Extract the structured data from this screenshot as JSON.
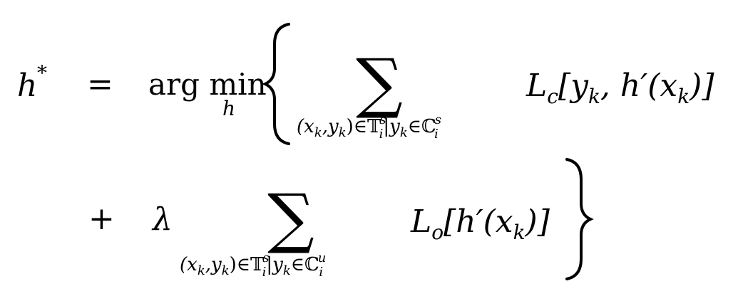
{
  "equation": {
    "lhs": "h",
    "lhs_sup": "*",
    "eq": "=",
    "op": "arg min",
    "op_sub": "h",
    "sum1": {
      "sigma": "∑",
      "sub_a": "(x",
      "sub_a_k": "k",
      "sub_b": ",y",
      "sub_b_k": "k",
      "sub_c": ")∈",
      "T": "𝕋",
      "T_sup": "s",
      "T_sub": "i",
      "bar": "|",
      "y": "y",
      "y_k": "k",
      "in": "∈",
      "C": "ℂ",
      "C_sup": "s",
      "C_sub": "i"
    },
    "term1": {
      "L": "L",
      "L_sub": "c",
      "body_a": "[y",
      "body_a_k": "k",
      "body_b": ", h′(x",
      "body_b_k": "k",
      "body_c": ")]"
    },
    "plus": "+",
    "lambda": "λ",
    "sum2": {
      "sigma": "∑",
      "sub_a": "(x",
      "sub_a_k": "k",
      "sub_b": ",y",
      "sub_b_k": "k",
      "sub_c": ")∈",
      "T": "𝕋",
      "T_sup": "s",
      "T_sub": "i",
      "bar": "|",
      "y": "y",
      "y_k": "k",
      "in": "∈",
      "C": "ℂ",
      "C_sup": "u",
      "C_sub": "i"
    },
    "term2": {
      "L": "L",
      "L_sub": "o",
      "body_a": "[h′(x",
      "body_a_k": "k",
      "body_b": ")]"
    }
  }
}
